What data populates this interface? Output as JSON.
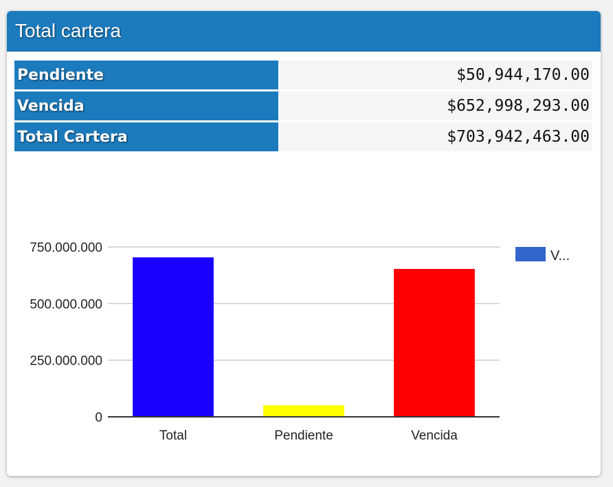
{
  "panel": {
    "title": "Total cartera"
  },
  "summary_rows": [
    {
      "label": "Pendiente",
      "value": "$50,944,170.00"
    },
    {
      "label": "Vencida",
      "value": "$652,998,293.00"
    },
    {
      "label": "Total Cartera",
      "value": "$703,942,463.00"
    }
  ],
  "colors": {
    "header": "#1c7bbd",
    "total_bar": "#1a00ff",
    "pendiente_bar": "#ffff00",
    "vencida_bar": "#ff0000",
    "legend_swatch": "#3366cc"
  },
  "chart_data": {
    "type": "bar",
    "categories": [
      "Total",
      "Pendiente",
      "Vencida"
    ],
    "series": [
      {
        "name": "V...",
        "values": [
          703942463,
          50944170,
          652998293
        ]
      }
    ],
    "bar_colors": [
      "#1a00ff",
      "#ffff00",
      "#ff0000"
    ],
    "y_ticks": [
      0,
      250000000,
      500000000,
      750000000
    ],
    "y_tick_labels": [
      "0",
      "250.000.000",
      "500.000.000",
      "750.000.000"
    ],
    "ylim": [
      0,
      750000000
    ],
    "grid": true,
    "legend_position": "right",
    "title": "",
    "xlabel": "",
    "ylabel": ""
  }
}
